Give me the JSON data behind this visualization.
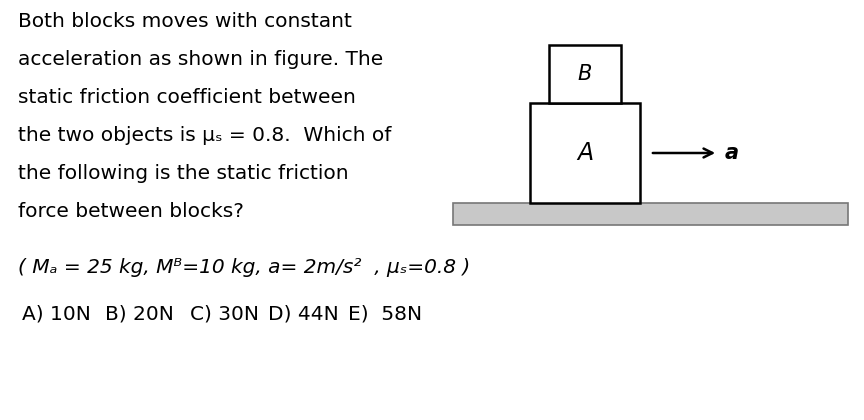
{
  "bg_color": "#ffffff",
  "text_color": "#000000",
  "main_text_lines": [
    "Both blocks moves with constant",
    "acceleration as shown in figure. The",
    "static friction coefficient between",
    "the two objects is μₛ = 0.8.  Which of",
    "the following is the static friction",
    "force between blocks?"
  ],
  "param_line": "( Mₐ = 25 kg, Mᴮ=10 kg, a= 2m/s²  , μₛ=0.8 )",
  "answer_items": [
    "A) 10N",
    "B) 20N",
    "C) 30N",
    "D) 44N",
    "E)  58N"
  ],
  "answer_x": [
    22,
    105,
    190,
    268,
    348
  ],
  "fig_width": 8.64,
  "fig_height": 4.2,
  "dpi": 100,
  "ground_color": "#c8c8c8",
  "ground_edge": "#777777",
  "block_edge": "#000000",
  "block_face": "#ffffff"
}
